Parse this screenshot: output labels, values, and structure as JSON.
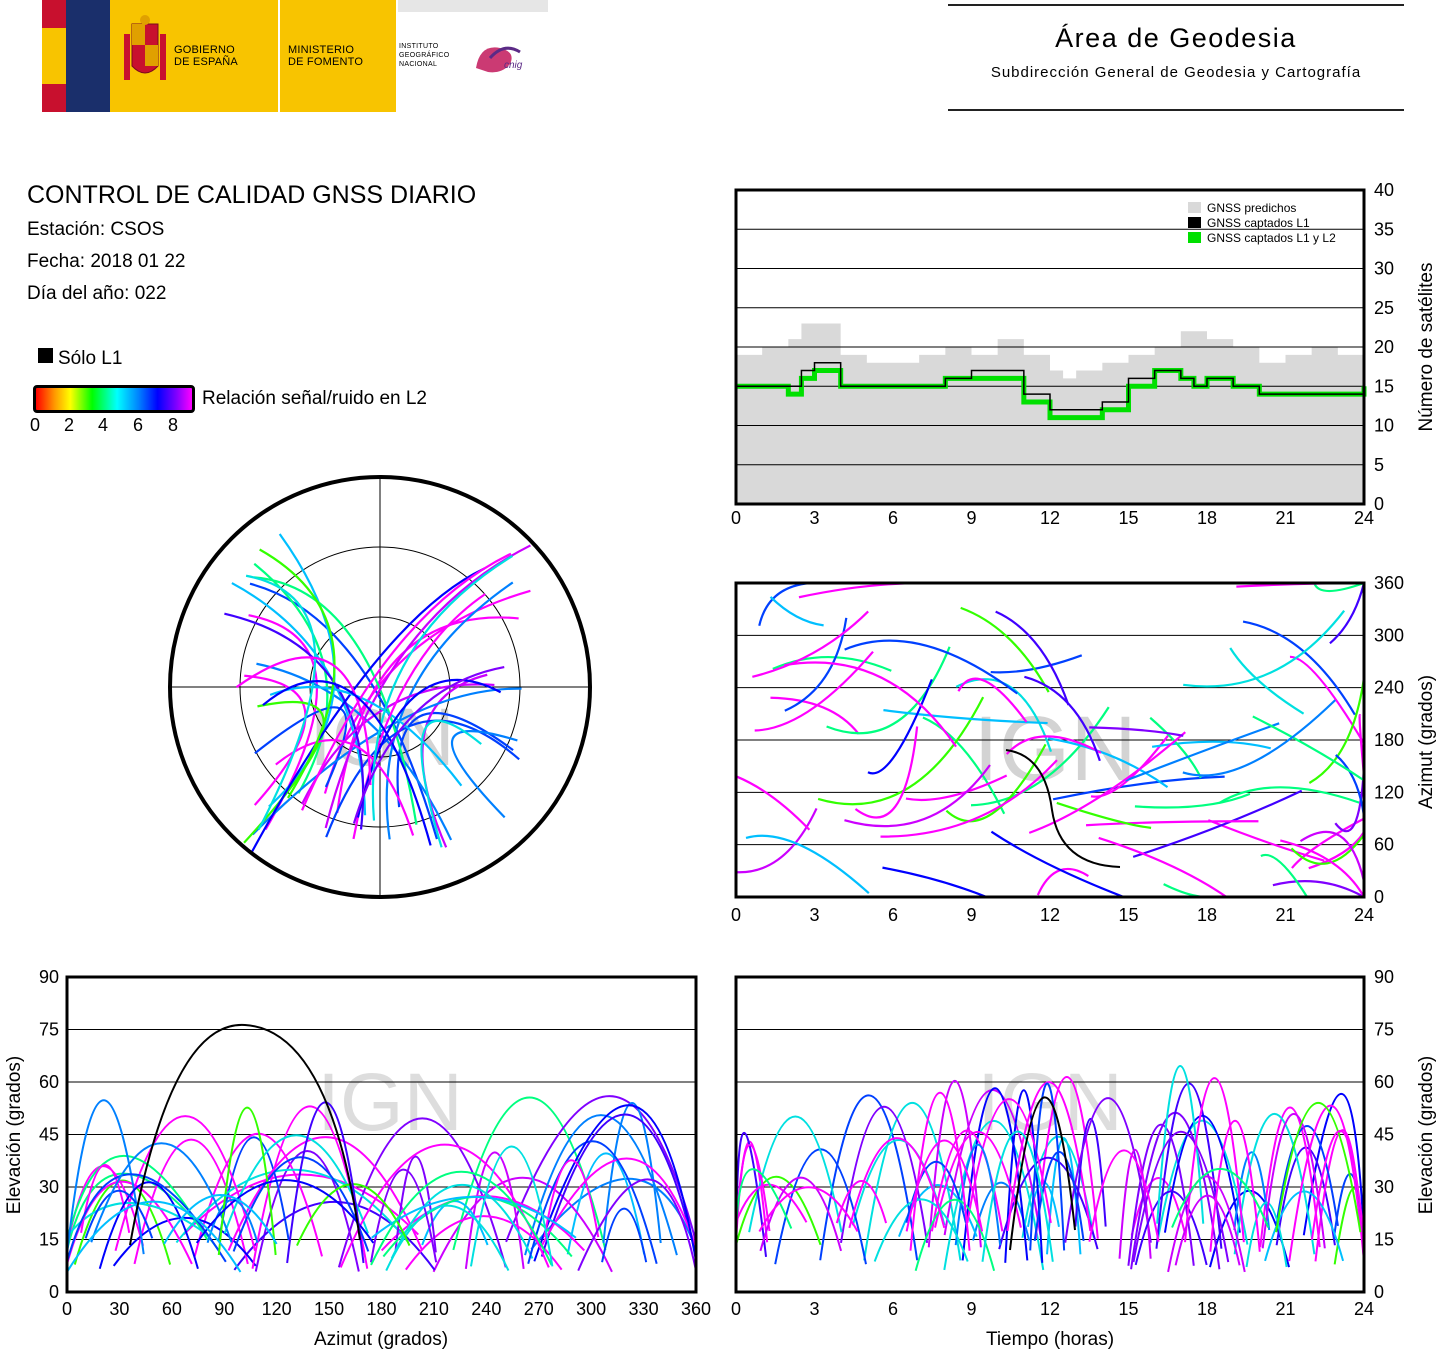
{
  "header": {
    "gobierno": [
      "GOBIERNO",
      "DE ESPAÑA"
    ],
    "ministerio": [
      "MINISTERIO",
      "DE FOMENTO"
    ],
    "instituto": [
      "INSTITUTO",
      "GEOGRÁFICO",
      "NACIONAL"
    ],
    "cnig_logo_text": "cnig",
    "area_title": "Área de Geodesia",
    "area_subtitle": "Subdirección General de Geodesia y Cartografía",
    "colors": {
      "red": "#c8102e",
      "yellow": "#f8c400",
      "navy": "#1a2f6b"
    }
  },
  "report": {
    "title": "CONTROL DE CALIDAD GNSS DIARIO",
    "station": "Estación: CSOS",
    "date": "Fecha: 2018 01 22",
    "doy": "Día del año: 022"
  },
  "legend": {
    "l1_only": "Sólo L1",
    "snr_label": "Relación señal/ruido en L2",
    "snr_ticks": [
      "0",
      "2",
      "4",
      "6",
      "8"
    ]
  },
  "watermark": "IGN",
  "chart_data": [
    {
      "id": "satellite-count",
      "type": "area",
      "ylabel": "Número de satélites",
      "xlim": [
        0,
        24
      ],
      "ylim": [
        0,
        40
      ],
      "x_ticks": [
        "0",
        "3",
        "6",
        "9",
        "12",
        "15",
        "18",
        "21",
        "24"
      ],
      "y_ticks": [
        "0",
        "5",
        "10",
        "15",
        "20",
        "25",
        "30",
        "35",
        "40"
      ],
      "grid": true,
      "legend_position": "top-right",
      "x": [
        0,
        1,
        2,
        2.5,
        3,
        4,
        5,
        6,
        7,
        8,
        9,
        10,
        11,
        12,
        12.5,
        13,
        14,
        15,
        16,
        17,
        17.5,
        18,
        19,
        20,
        21,
        22,
        23,
        24
      ],
      "series": [
        {
          "name": "GNSS predichos",
          "color": "#d9d9d9",
          "values": [
            19,
            20,
            21,
            23,
            23,
            19,
            18,
            18,
            19,
            20,
            19,
            21,
            19,
            17,
            16,
            17,
            18,
            19,
            20,
            22,
            22,
            21,
            20,
            18,
            19,
            20,
            19,
            19
          ]
        },
        {
          "name": "GNSS captados L1",
          "color": "#000000",
          "values": [
            15,
            15,
            15,
            17,
            18,
            15,
            15,
            15,
            15,
            16,
            17,
            17,
            14,
            12,
            12,
            12,
            13,
            16,
            17,
            16,
            15,
            16,
            15,
            14,
            14,
            14,
            14,
            15
          ]
        },
        {
          "name": "GNSS captados L1 y L2",
          "color": "#00e000",
          "values": [
            15,
            15,
            14,
            16,
            17,
            15,
            15,
            15,
            15,
            16,
            16,
            16,
            13,
            11,
            11,
            11,
            12,
            15,
            17,
            16,
            15,
            16,
            15,
            14,
            14,
            14,
            14,
            15
          ]
        }
      ]
    },
    {
      "id": "azimuth-vs-time",
      "type": "line",
      "ylabel": "Azimut (grados)",
      "xlim": [
        0,
        24
      ],
      "ylim": [
        0,
        360
      ],
      "x_ticks": [
        "0",
        "3",
        "6",
        "9",
        "12",
        "15",
        "18",
        "21",
        "24"
      ],
      "y_ticks": [
        "0",
        "60",
        "120",
        "180",
        "240",
        "300",
        "360"
      ],
      "grid": true
    },
    {
      "id": "sky-plot",
      "type": "scatter",
      "polar": true,
      "elevation_rings": [
        0,
        30,
        60
      ]
    },
    {
      "id": "elevation-vs-azimuth",
      "type": "line",
      "xlabel": "Azimut (grados)",
      "ylabel": "Elevación (grados)",
      "xlim": [
        0,
        360
      ],
      "ylim": [
        0,
        90
      ],
      "x_ticks": [
        "0",
        "30",
        "60",
        "90",
        "120",
        "150",
        "180",
        "210",
        "240",
        "270",
        "300",
        "330",
        "360"
      ],
      "y_ticks": [
        "0",
        "15",
        "30",
        "45",
        "60",
        "75",
        "90"
      ],
      "grid": true
    },
    {
      "id": "elevation-vs-time",
      "type": "line",
      "xlabel": "Tiempo (horas)",
      "ylabel": "Elevación (grados)",
      "xlim": [
        0,
        24
      ],
      "ylim": [
        0,
        90
      ],
      "x_ticks": [
        "0",
        "3",
        "6",
        "9",
        "12",
        "15",
        "18",
        "21",
        "24"
      ],
      "y_ticks": [
        "0",
        "15",
        "30",
        "45",
        "60",
        "75",
        "90"
      ],
      "grid": true
    }
  ]
}
